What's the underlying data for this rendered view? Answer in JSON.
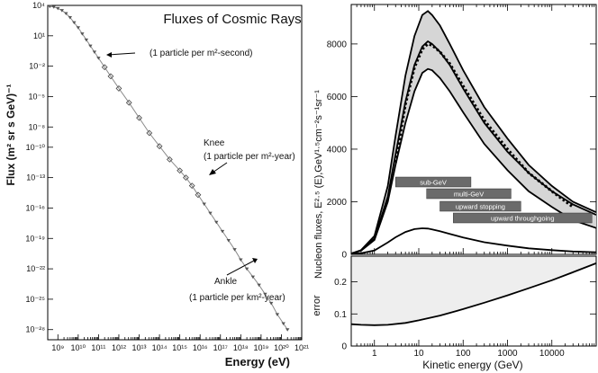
{
  "chart_data": [
    {
      "type": "scatter",
      "title": "Fluxes of Cosmic Rays",
      "xlabel": "Energy (eV)",
      "ylabel": "Flux (m² sr s GeV)⁻¹",
      "xscale": "log",
      "yscale": "log",
      "xlim_log10": [
        8.5,
        21
      ],
      "ylim_log10": [
        -29,
        4
      ],
      "x_tick_labels": [
        "10⁹",
        "10¹⁰",
        "10¹¹",
        "10¹²",
        "10¹³",
        "10¹⁴",
        "10¹⁵",
        "10¹⁶",
        "10¹⁷",
        "10¹⁸",
        "10¹⁹",
        "10²⁰",
        "10²¹"
      ],
      "x_tick_exponents": [
        9,
        10,
        11,
        12,
        13,
        14,
        15,
        16,
        17,
        18,
        19,
        20,
        21
      ],
      "y_tick_labels": [
        "10⁴",
        "10¹",
        "10⁻²",
        "10⁻⁵",
        "10⁻⁸",
        "10⁻¹⁰",
        "10⁻¹³",
        "10⁻¹⁶",
        "10⁻¹⁹",
        "10⁻²²",
        "10⁻²⁵",
        "10⁻²⁸"
      ],
      "y_tick_exponents": [
        4,
        1,
        -2,
        -5,
        -8,
        -10,
        -13,
        -16,
        -19,
        -22,
        -25,
        -28
      ],
      "series": [
        {
          "x_log10": [
            8.6,
            8.8,
            9.0,
            9.2,
            9.4,
            9.6,
            9.8,
            10.0,
            10.2,
            10.4,
            10.6,
            10.8,
            11.0,
            11.3,
            11.6,
            12.0,
            12.5,
            13.0,
            13.5,
            14.0,
            14.5,
            15.0,
            15.3,
            15.6,
            15.9,
            16.2,
            16.5,
            16.8,
            17.1,
            17.4,
            17.7,
            18.0,
            18.3,
            18.6,
            18.9,
            19.2,
            19.5,
            19.8,
            20.1,
            20.3
          ],
          "y_log10": [
            3.9,
            3.85,
            3.7,
            3.5,
            3.2,
            2.8,
            2.3,
            1.8,
            1.2,
            0.6,
            0.0,
            -0.6,
            -1.2,
            -2.1,
            -3.0,
            -4.2,
            -5.6,
            -7.1,
            -8.6,
            -9.9,
            -11.2,
            -12.3,
            -13.0,
            -13.8,
            -14.7,
            -15.6,
            -16.5,
            -17.4,
            -18.3,
            -19.2,
            -20.1,
            -21.1,
            -22.0,
            -22.8,
            -23.6,
            -24.5,
            -25.4,
            -26.5,
            -27.4,
            -28.0
          ]
        }
      ],
      "annotations": [
        "(1 particle per m²-second)",
        "Knee",
        "(1 particle per m²-year)",
        "Ankle",
        "(1 particle per km²-year)"
      ]
    },
    {
      "type": "line",
      "xlabel": "Kinetic energy (GeV)",
      "ylabel": "Nucleon fluxes, E²·⁵ (E),GeV¹·⁵cm⁻²s⁻¹sr⁻¹",
      "xscale": "log",
      "xlim": [
        0.3,
        100000
      ],
      "ylim": [
        0,
        9500
      ],
      "x_tick_labels": [
        "1",
        "10",
        "100",
        "1000",
        "10000"
      ],
      "x_ticks": [
        1,
        10,
        100,
        1000,
        10000
      ],
      "y_tick_labels": [
        "0",
        "2000",
        "4000",
        "6000",
        "8000"
      ],
      "y_ticks": [
        0,
        2000,
        4000,
        6000,
        8000
      ],
      "x": [
        0.3,
        0.5,
        1,
        2,
        3,
        5,
        8,
        12,
        16,
        20,
        30,
        50,
        100,
        300,
        1000,
        3000,
        10000,
        30000,
        100000
      ],
      "series": [
        {
          "values": [
            30,
            150,
            600,
            2200,
            3800,
            5800,
            7200,
            7900,
            8100,
            8000,
            7700,
            7200,
            6300,
            5000,
            3900,
            3100,
            2400,
            1900,
            1500
          ]
        },
        {
          "values": [
            30,
            160,
            700,
            2600,
            4500,
            6800,
            8300,
            9100,
            9250,
            9100,
            8700,
            8000,
            7000,
            5600,
            4400,
            3400,
            2600,
            2000,
            1600
          ]
        },
        {
          "values": [
            30,
            140,
            550,
            2000,
            3400,
            5000,
            6200,
            6900,
            7050,
            7000,
            6700,
            6200,
            5400,
            4200,
            3200,
            2400,
            1800,
            1300,
            1000
          ]
        },
        {
          "values": [
            null,
            null,
            null,
            null,
            3500,
            5700,
            7100,
            7800,
            8000,
            7950,
            7700,
            7250,
            6400,
            5100,
            4000,
            3100,
            2400,
            1800,
            null
          ],
          "style": "dotted"
        },
        {
          "values": [
            10,
            40,
            150,
            450,
            650,
            850,
            960,
            990,
            980,
            950,
            880,
            780,
            640,
            460,
            330,
            230,
            160,
            110,
            80
          ]
        }
      ],
      "bands": [
        "sub-GeV",
        "multi-GeV",
        "upward stopping",
        "upward throughgoing"
      ],
      "band_ranges": [
        [
          3,
          150
        ],
        [
          15,
          1200
        ],
        [
          30,
          2000
        ],
        [
          60,
          80000
        ]
      ]
    },
    {
      "type": "area",
      "xlabel": "Kinetic energy (GeV)",
      "ylabel": "error",
      "xscale": "log",
      "xlim": [
        0.3,
        100000
      ],
      "ylim": [
        0,
        0.28
      ],
      "y_tick_labels": [
        "0",
        "0.1",
        "0.2"
      ],
      "y_ticks": [
        0,
        0.1,
        0.2
      ],
      "x": [
        0.3,
        0.5,
        1,
        2,
        5,
        10,
        30,
        100,
        300,
        1000,
        3000,
        10000,
        30000,
        100000
      ],
      "values": [
        0.068,
        0.066,
        0.065,
        0.066,
        0.072,
        0.08,
        0.095,
        0.115,
        0.135,
        0.158,
        0.18,
        0.205,
        0.23,
        0.258
      ]
    }
  ]
}
